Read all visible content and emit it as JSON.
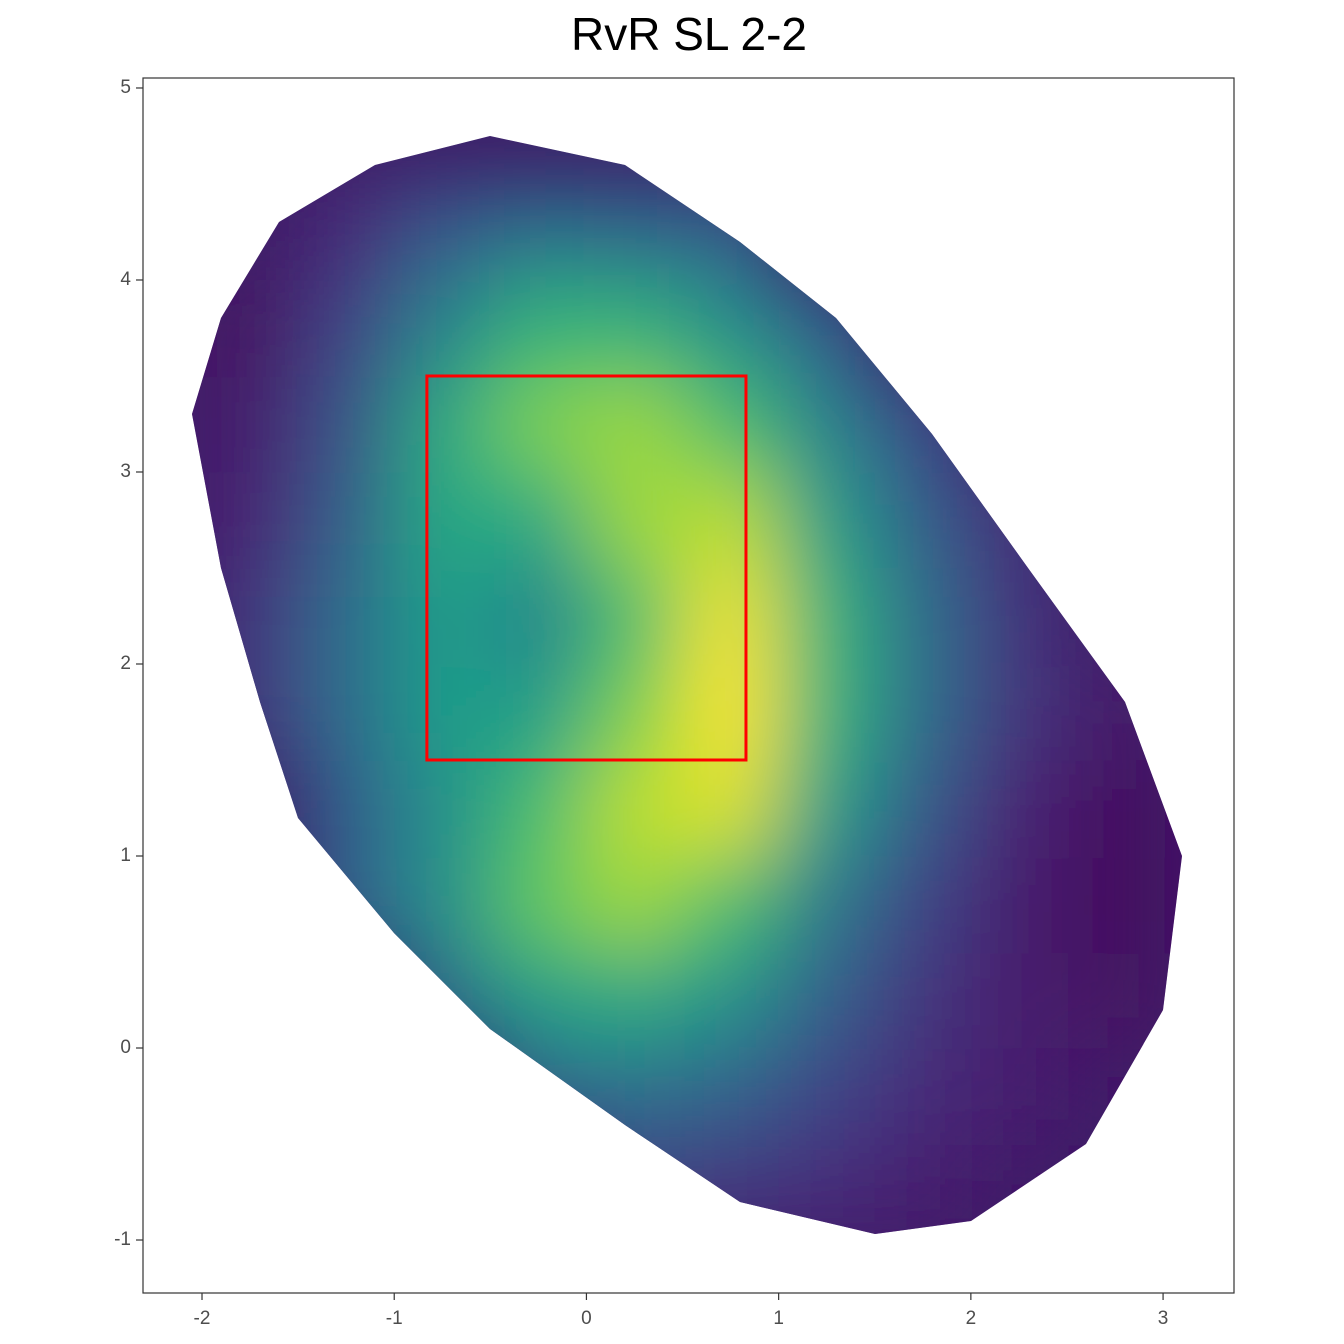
{
  "chart_data": {
    "type": "heatmap",
    "title": "RvR SL 2-2",
    "colormap": "viridis",
    "xlim": [
      -2.307,
      3.369
    ],
    "ylim": [
      -1.276,
      5.052
    ],
    "xticks": [
      -2,
      -1,
      0,
      1,
      2,
      3
    ],
    "yticks": [
      -1,
      0,
      1,
      2,
      3,
      4,
      5
    ],
    "x": [
      -1.75,
      -1.25,
      -0.75,
      -0.25,
      0.25,
      0.75,
      1.25,
      1.75,
      2.25,
      2.75
    ],
    "y": [
      -0.75,
      -0.25,
      0.25,
      0.75,
      1.25,
      1.75,
      2.25,
      2.75,
      3.25,
      3.75,
      4.25
    ],
    "z": [
      [
        null,
        null,
        null,
        null,
        0.18,
        0.15,
        0.12,
        0.08,
        null,
        null
      ],
      [
        null,
        null,
        null,
        0.3,
        0.35,
        0.3,
        0.2,
        0.12,
        0.08,
        null
      ],
      [
        null,
        null,
        0.35,
        0.55,
        0.6,
        0.5,
        0.3,
        0.15,
        0.08,
        0.05
      ],
      [
        null,
        0.3,
        0.5,
        0.75,
        0.85,
        0.7,
        0.4,
        0.2,
        0.08,
        0.03
      ],
      [
        null,
        0.3,
        0.5,
        0.7,
        0.9,
        0.95,
        0.55,
        0.28,
        0.1,
        0.04
      ],
      [
        0.15,
        0.35,
        0.55,
        0.55,
        0.8,
        1.0,
        0.65,
        0.35,
        0.15,
        0.07
      ],
      [
        0.15,
        0.35,
        0.55,
        0.45,
        0.7,
        0.98,
        0.65,
        0.35,
        0.15,
        null
      ],
      [
        0.1,
        0.3,
        0.6,
        0.6,
        0.85,
        0.9,
        0.55,
        0.3,
        0.12,
        null
      ],
      [
        0.08,
        0.25,
        0.6,
        0.8,
        0.85,
        0.7,
        0.45,
        0.22,
        null,
        null
      ],
      [
        0.05,
        0.2,
        0.45,
        0.65,
        0.65,
        0.5,
        0.3,
        null,
        null,
        null
      ],
      [
        null,
        0.12,
        0.28,
        0.38,
        0.35,
        0.3,
        null,
        null,
        null,
        null
      ]
    ],
    "strike_zone": {
      "x": [
        -0.83,
        0.83
      ],
      "y": [
        1.5,
        3.5
      ],
      "color": "#ff0000"
    }
  }
}
